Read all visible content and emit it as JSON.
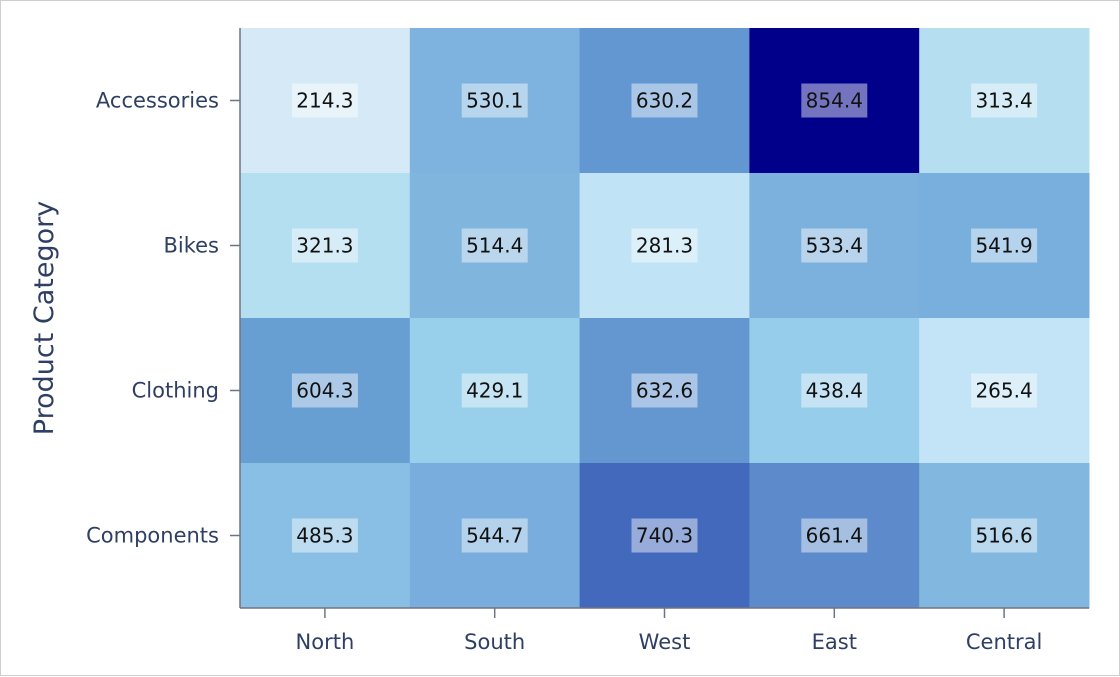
{
  "chart_data": {
    "type": "heatmap",
    "title": "",
    "xlabel": "",
    "ylabel": "Product Category",
    "x_categories": [
      "North",
      "South",
      "West",
      "East",
      "Central"
    ],
    "y_categories": [
      "Accessories",
      "Bikes",
      "Clothing",
      "Components"
    ],
    "values": [
      [
        214.3,
        530.1,
        630.2,
        854.4,
        313.4
      ],
      [
        321.3,
        514.4,
        281.3,
        533.4,
        541.9
      ],
      [
        604.3,
        429.1,
        632.6,
        438.4,
        265.4
      ],
      [
        485.3,
        544.7,
        740.3,
        661.4,
        516.6
      ]
    ],
    "colors": [
      [
        "#d5eaf6",
        "#7db3de",
        "#6397d1",
        "#00008b",
        "#b5dff1"
      ],
      [
        "#b4dff1",
        "#80b5de",
        "#c0e3f5",
        "#7cb1dd",
        "#79afdd"
      ],
      [
        "#689fd3",
        "#98cfeb",
        "#6496d0",
        "#95cdeb",
        "#c2e4f6"
      ],
      [
        "#89bfe4",
        "#78addd",
        "#4369bd",
        "#5c8acb",
        "#82b8e0"
      ]
    ],
    "grid": false,
    "legend": "none"
  }
}
